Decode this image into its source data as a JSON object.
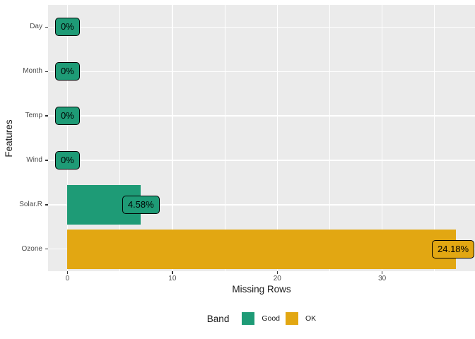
{
  "chart_data": {
    "type": "bar",
    "orientation": "horizontal",
    "title": "",
    "xlabel": "Missing Rows",
    "ylabel": "Features",
    "categories": [
      "Day",
      "Month",
      "Temp",
      "Wind",
      "Solar.R",
      "Ozone"
    ],
    "series": [
      {
        "name": "Missing Rows",
        "values": [
          0,
          0,
          0,
          0,
          7,
          37
        ]
      }
    ],
    "bar_labels": [
      "0%",
      "0%",
      "0%",
      "0%",
      "4.58%",
      "24.18%"
    ],
    "bands": [
      "Good",
      "Good",
      "Good",
      "Good",
      "Good",
      "OK"
    ],
    "band_colors": {
      "Good": "#1E9B76",
      "OK": "#E2A712"
    },
    "x_ticks": [
      0,
      10,
      20,
      30
    ],
    "x_minor_ticks": [
      5,
      15,
      25,
      35
    ],
    "xlim": [
      -1.85,
      38.85
    ],
    "grid": true,
    "panel_background": "#EBEBEB",
    "gridline_color": "#FFFFFF",
    "legend_position": "bottom",
    "legend_title": "Band",
    "legend_entries": [
      {
        "label": "Good",
        "color": "#1E9B76"
      },
      {
        "label": "OK",
        "color": "#E2A712"
      }
    ]
  }
}
